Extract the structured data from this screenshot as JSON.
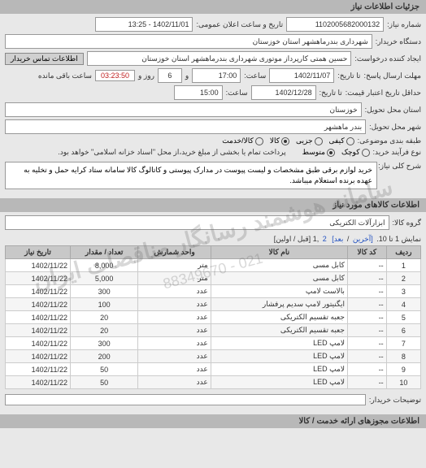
{
  "sections": {
    "info_header": "جزئیات اطلاعات نیاز"
  },
  "fields": {
    "shomare_label": "شماره نیاز:",
    "shomare_value": "1102005682000132",
    "tarikh_elan_label": "تاریخ و ساعت اعلان عمومی:",
    "tarikh_elan_value": "1402/11/01 - 13:25",
    "kharidar_label": "دستگاه خریدار:",
    "kharidar_value": "شهرداری بندرماهشهر استان خوزستان",
    "darkhast_label": "ایجاد کننده درخواست:",
    "darkhast_value": "حسین همتی کارپرداز موتوری شهرداری بندرماهشهر استان خوزستان",
    "tamas_btn": "اطلاعات تماس خریدار",
    "mohlat_ersal_label": "مهلت ارسال پاسخ:",
    "ta_tarikh_label": "تا تاریخ:",
    "ta_tarikh_value": "1402/11/07",
    "saat_label": "ساعت:",
    "saat_value": "17:00",
    "rooz_label": "و",
    "rooz_value": "6",
    "rooz_after_label": "روز و",
    "countdown_value": "03:23:50",
    "baghy_label": "ساعت باقی مانده",
    "etebar_label": "حداقل تاریخ اعتبار قیمت:",
    "etebar_ta_label": "تا تاریخ:",
    "etebar_tarikh": "1402/12/28",
    "etebar_saat": "15:00",
    "ostan_label": "استان محل تحویل:",
    "ostan_value": "خوزستان",
    "shahr_label": "شهر محل تحویل:",
    "shahr_value": "بندر ماهشهر",
    "tabaghe_label": "طبقه بندی موضوعی:",
    "tabaghe_kiyfi": "کیفی",
    "tabaghe_jozi": "جزیی",
    "tabaghe_kala": "کالا",
    "tabaghe_khadamat": "کالا/خدمت",
    "farayand_label": "نوع فرآیند خرید:",
    "farayand_kuchak": "کوچک",
    "farayand_motavaset": "متوسط",
    "pardakht_note": "پرداخت تمام یا بخشی از مبلغ خرید،از محل \"اسناد خزانه اسلامی\" خواهد بود.",
    "sharh_label": "شرح کلی نیاز:",
    "sharh_value": "خرید لوازم برقی طبق مشخصات و لیست پیوست در مدارک پیوستی و کاتالوگ کالا سامانه ستاد کرایه حمل و تخلیه به عهده برنده استعلام میباشد.",
    "kala_section": "اطلاعات کالاهای مورد نیاز",
    "gorooh_label": "گروه کالا:",
    "gorooh_value": "ابزارآلات الکتریکی"
  },
  "pager": {
    "text": "نمایش 1 تا 10.",
    "links": {
      "last": "[آخرین",
      "next": "بعد]",
      "p2": "2",
      "p1": "1",
      "first_prev": "[قبل / اولین]"
    }
  },
  "table": {
    "cols": [
      "ردیف",
      "کد کالا",
      "نام کالا",
      "واحد شمارش",
      "تعداد / مقدار",
      "تاریخ نیاز"
    ],
    "rows": [
      [
        "1",
        "--",
        "کابل مسی",
        "متر",
        "8,000",
        "1402/11/22"
      ],
      [
        "2",
        "--",
        "کابل مسی",
        "متر",
        "5,000",
        "1402/11/22"
      ],
      [
        "3",
        "--",
        "بالاست لامپ",
        "عدد",
        "300",
        "1402/11/22"
      ],
      [
        "4",
        "--",
        "ایگنیتور لامپ سدیم پرفشار",
        "عدد",
        "100",
        "1402/11/22"
      ],
      [
        "5",
        "--",
        "جعبه تقسیم الکتریکی",
        "عدد",
        "20",
        "1402/11/22"
      ],
      [
        "6",
        "--",
        "جعبه تقسیم الکتریکی",
        "عدد",
        "20",
        "1402/11/22"
      ],
      [
        "7",
        "--",
        "لامپ LED",
        "عدد",
        "300",
        "1402/11/22"
      ],
      [
        "8",
        "--",
        "لامپ LED",
        "عدد",
        "200",
        "1402/11/22"
      ],
      [
        "9",
        "--",
        "لامپ LED",
        "عدد",
        "50",
        "1402/11/22"
      ],
      [
        "10",
        "--",
        "لامپ LED",
        "عدد",
        "50",
        "1402/11/22"
      ]
    ]
  },
  "footer": {
    "tozihaat_label": "توضیحات خریدار:",
    "mojavez_header": "اطلاعات مجوزهای ارائه خدمت / کالا"
  },
  "watermark": {
    "line1": "سامانه هوشمند رسانگار مناقصات ایران",
    "line2": "021 - 88349670"
  },
  "colors": {
    "header_bg": "#b8b8b8",
    "body_bg": "#e8e8e8",
    "field_bg": "#ffffff",
    "border": "#999999",
    "btn_bg": "#d0d0d0",
    "countdown_color": "#c02020"
  }
}
